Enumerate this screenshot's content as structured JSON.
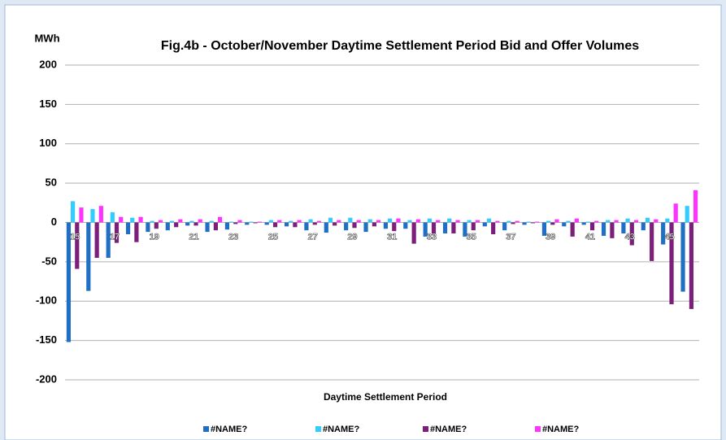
{
  "chart_data": {
    "type": "bar",
    "title": "Fig.4b - October/November Daytime Settlement Period Bid and Offer Volumes",
    "y_label": "MWh",
    "x_label": "Daytime Settlement Period",
    "categories": [
      "15",
      null,
      "17",
      null,
      "19",
      null,
      "21",
      null,
      "23",
      null,
      "25",
      null,
      "27",
      null,
      "29",
      null,
      "31",
      null,
      "33",
      null,
      "35",
      null,
      "37",
      null,
      "39",
      null,
      "41",
      null,
      "43",
      null,
      "45",
      null
    ],
    "series": [
      {
        "name": "#NAME?",
        "color": "#1f6fc5",
        "values": [
          -152,
          -87,
          -45,
          -15,
          -12,
          -10,
          -4,
          -12,
          -9,
          -3,
          -3,
          -5,
          -10,
          -13,
          -10,
          -12,
          -8,
          -8,
          -18,
          -14,
          -18,
          -5,
          -10,
          -3,
          -17,
          -5,
          -3,
          -17,
          -14,
          -10,
          -28,
          -88
        ]
      },
      {
        "name": "#NAME?",
        "color": "#33ccff",
        "values": [
          27,
          17,
          13,
          6,
          2,
          2,
          2,
          2,
          1,
          1,
          3,
          2,
          4,
          6,
          6,
          4,
          5,
          3,
          5,
          5,
          3,
          5,
          2,
          1,
          2,
          2,
          1,
          3,
          5,
          6,
          5,
          21
        ]
      },
      {
        "name": "#NAME?",
        "color": "#7b1f7b",
        "values": [
          -59,
          -45,
          -26,
          -25,
          -8,
          -6,
          -4,
          -10,
          -2,
          -1,
          -6,
          -6,
          -3,
          -4,
          -7,
          -5,
          -11,
          -27,
          -14,
          -14,
          -10,
          -15,
          -2,
          -1,
          -3,
          -18,
          -10,
          -20,
          -29,
          -49,
          -104,
          -110
        ]
      },
      {
        "name": "#NAME?",
        "color": "#ff33ff",
        "values": [
          19,
          21,
          7,
          7,
          3,
          4,
          4,
          7,
          3,
          1,
          3,
          3,
          2,
          3,
          3,
          3,
          5,
          4,
          3,
          3,
          3,
          2,
          2,
          1,
          4,
          5,
          2,
          3,
          3,
          4,
          24,
          41
        ]
      }
    ],
    "ylim": [
      -200,
      200
    ],
    "yticks": [
      -200,
      -150,
      -100,
      -50,
      0,
      50,
      100,
      150,
      200
    ],
    "grid": true,
    "legend": "bottom"
  }
}
